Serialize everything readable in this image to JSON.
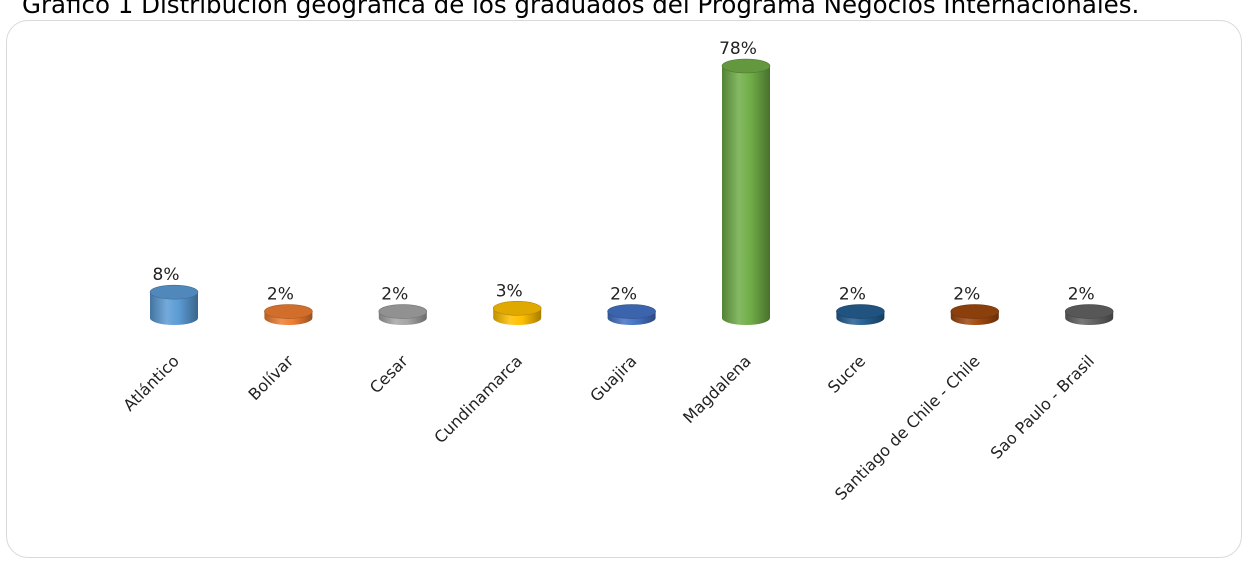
{
  "chart_data": {
    "type": "bar",
    "style": "3d-cylinder",
    "title": "Gráfico 1 Distribución geográfica de los graduados del Programa Negocios Internacionales.",
    "categories": [
      "Atlántico",
      "Bolívar",
      "Cesar",
      "Cundinamarca",
      "Guajira",
      "Magdalena",
      "Sucre",
      "Santiago de Chile - Chile",
      "Sao Paulo - Brasil"
    ],
    "values": [
      8,
      2,
      2,
      3,
      2,
      78,
      2,
      2,
      2
    ],
    "data_labels": [
      "8%",
      "2%",
      "2%",
      "3%",
      "2%",
      "78%",
      "2%",
      "2%",
      "2%"
    ],
    "colors": [
      "#5b9bd5",
      "#ed7d31",
      "#a5a5a5",
      "#ffc000",
      "#4472c4",
      "#70ad47",
      "#255e91",
      "#9e480e",
      "#636363"
    ],
    "ylim": [
      0,
      100
    ],
    "legend": "none",
    "grid": false
  }
}
